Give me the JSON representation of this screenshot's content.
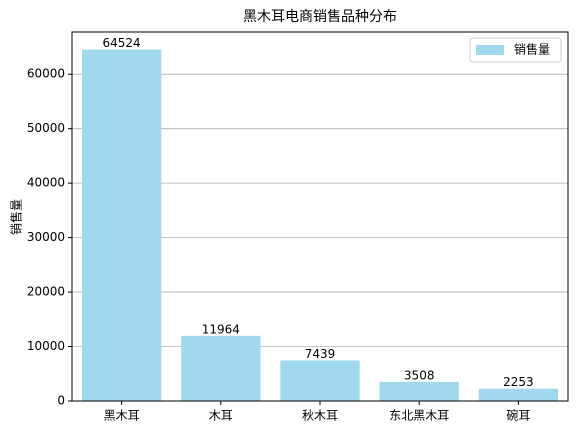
{
  "chart_data": {
    "type": "bar",
    "title": "黑木耳电商销售品种分布",
    "ylabel": "销售量",
    "categories": [
      "黑木耳",
      "木耳",
      "秋木耳",
      "东北黑木耳",
      "碗耳"
    ],
    "series": [
      {
        "name": "销售量",
        "color": "#a0d8ee",
        "values": [
          64524,
          11964,
          7439,
          3508,
          2253
        ]
      }
    ],
    "ylim": [
      0,
      67750
    ],
    "yticks": [
      0,
      10000,
      20000,
      30000,
      40000,
      50000,
      60000
    ],
    "grid": true,
    "legend": "upper right"
  }
}
